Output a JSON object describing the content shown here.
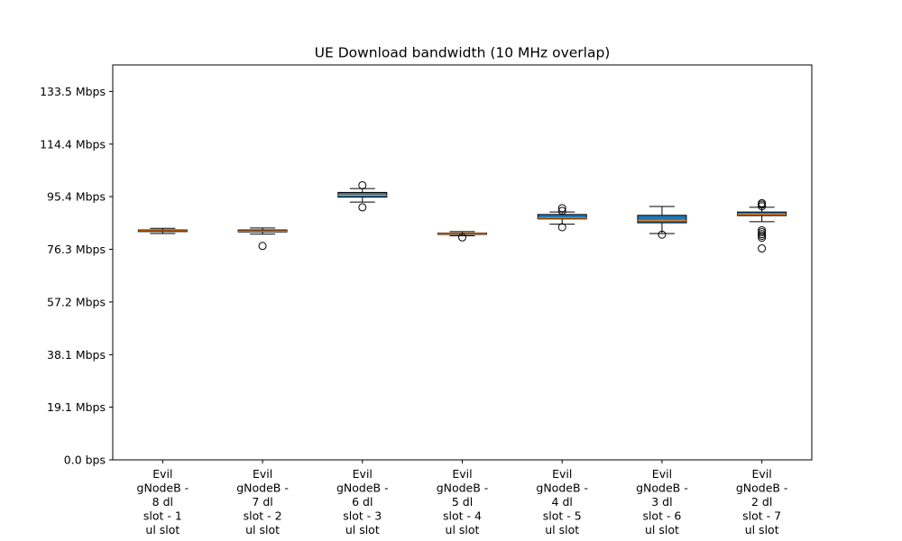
{
  "chart_data": {
    "type": "boxplot",
    "title": "UE Download bandwidth (10 MHz overlap)",
    "xlabel": "",
    "ylabel": "",
    "unit": "Mbps",
    "ylim": [
      0,
      143.1
    ],
    "yticks": [
      {
        "value": 0.0,
        "label": "0.0 bps"
      },
      {
        "value": 19.1,
        "label": "19.1 Mbps"
      },
      {
        "value": 38.1,
        "label": "38.1 Mbps"
      },
      {
        "value": 57.2,
        "label": "57.2 Mbps"
      },
      {
        "value": 76.3,
        "label": "76.3 Mbps"
      },
      {
        "value": 95.4,
        "label": "95.4 Mbps"
      },
      {
        "value": 114.4,
        "label": "114.4 Mbps"
      },
      {
        "value": 133.5,
        "label": "133.5 Mbps"
      }
    ],
    "grid": false,
    "box_color": "#1f77b4",
    "median_color": "#ff7f0e",
    "categories": [
      [
        "Evil",
        "gNodeB -",
        "8 dl",
        "slot - 1",
        "ul slot"
      ],
      [
        "Evil",
        "gNodeB -",
        "7 dl",
        "slot - 2",
        "ul slot"
      ],
      [
        "Evil",
        "gNodeB -",
        "6 dl",
        "slot - 3",
        "ul slot"
      ],
      [
        "Evil",
        "gNodeB -",
        "5 dl",
        "slot - 4",
        "ul slot"
      ],
      [
        "Evil",
        "gNodeB -",
        "4 dl",
        "slot - 5",
        "ul slot"
      ],
      [
        "Evil",
        "gNodeB -",
        "3 dl",
        "slot - 6",
        "ul slot"
      ],
      [
        "Evil",
        "gNodeB -",
        "2 dl",
        "slot - 7",
        "ul slot"
      ]
    ],
    "boxes": [
      {
        "whislo": 82.0,
        "q1": 82.7,
        "med": 83.0,
        "q3": 83.3,
        "whishi": 83.9,
        "fliers": []
      },
      {
        "whislo": 81.8,
        "q1": 82.6,
        "med": 82.9,
        "q3": 83.3,
        "whishi": 84.0,
        "fliers": [
          77.5
        ]
      },
      {
        "whislo": 93.4,
        "q1": 95.2,
        "med": 95.9,
        "q3": 96.9,
        "whishi": 98.3,
        "fliers": [
          91.5,
          99.5
        ]
      },
      {
        "whislo": 81.2,
        "q1": 81.7,
        "med": 82.0,
        "q3": 82.2,
        "whishi": 82.7,
        "fliers": [
          80.6
        ]
      },
      {
        "whislo": 85.4,
        "q1": 87.3,
        "med": 87.6,
        "q3": 88.9,
        "whishi": 89.8,
        "fliers": [
          84.3,
          90.2,
          91.2
        ]
      },
      {
        "whislo": 82.0,
        "q1": 85.9,
        "med": 86.8,
        "q3": 88.6,
        "whishi": 91.8,
        "fliers": [
          81.6
        ]
      },
      {
        "whislo": 86.3,
        "q1": 88.5,
        "med": 89.0,
        "q3": 89.8,
        "whishi": 91.5,
        "fliers": [
          76.6,
          80.5,
          81.2,
          81.8,
          82.5,
          83.2,
          91.9,
          92.5,
          93.0
        ]
      }
    ]
  }
}
